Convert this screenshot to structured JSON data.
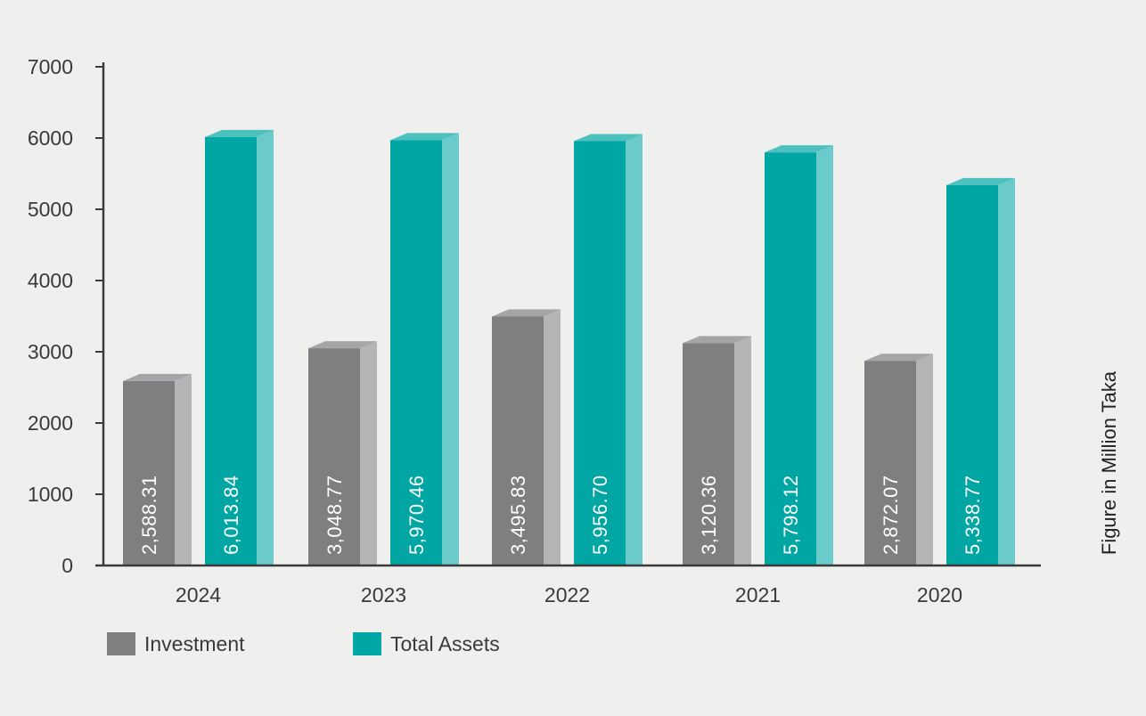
{
  "chart_data": {
    "type": "bar",
    "categories": [
      "2024",
      "2023",
      "2022",
      "2021",
      "2020"
    ],
    "series": [
      {
        "name": "Investment",
        "color": "#7f7f82",
        "values": [
          2588.31,
          3048.77,
          3495.83,
          3120.36,
          2872.07
        ],
        "labels": [
          "2,588.31",
          "3,048.77",
          "3,495.83",
          "3,120.36",
          "2,872.07"
        ]
      },
      {
        "name": "Total Assets",
        "color": "#00a6a3",
        "values": [
          6013.84,
          5970.46,
          5956.7,
          5798.12,
          5338.77
        ],
        "labels": [
          "6,013.84",
          "5,970.46",
          "5,956.70",
          "5,798.12",
          "5,338.77"
        ]
      }
    ],
    "ylim": [
      0,
      7000
    ],
    "yticks": [
      0,
      1000,
      2000,
      3000,
      4000,
      5000,
      6000,
      7000
    ],
    "ylabel": "Figure in Million Taka",
    "legend_position": "bottom-left",
    "grid": false
  }
}
